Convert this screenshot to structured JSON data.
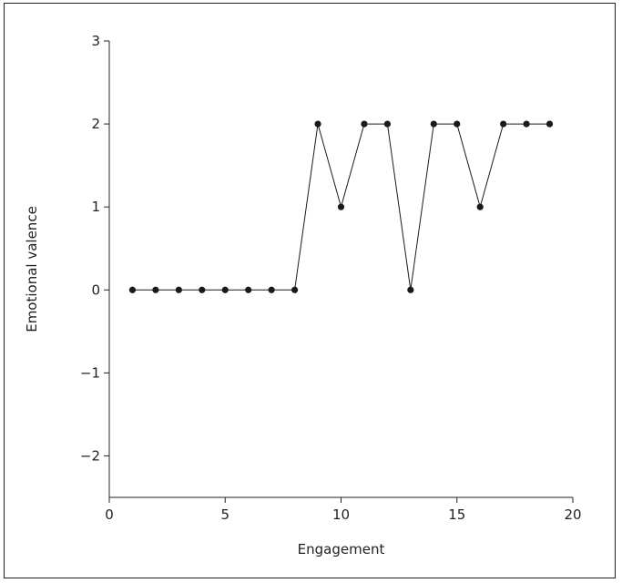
{
  "chart_data": {
    "type": "line",
    "title": "",
    "xlabel": "Engagement",
    "ylabel": "Emotional valence",
    "xlim": [
      0,
      20
    ],
    "ylim": [
      -2.5,
      3
    ],
    "xticks": [
      0,
      5,
      10,
      15,
      20
    ],
    "yticks": [
      3,
      2,
      1,
      0,
      -1,
      -2
    ],
    "ytick_labels": [
      "3",
      "2",
      "1",
      "0",
      "−1",
      "−2"
    ],
    "grid": false,
    "series": [
      {
        "x": [
          1,
          2,
          3,
          4,
          5,
          6,
          7,
          8,
          9,
          10,
          11,
          12,
          13,
          14,
          15,
          16,
          17,
          18,
          19
        ],
        "y": [
          0,
          0,
          0,
          0,
          0,
          0,
          0,
          0,
          2,
          1,
          2,
          2,
          0,
          2,
          2,
          1,
          2,
          2,
          2
        ],
        "color": "#1a1a1a",
        "marker": "circle"
      }
    ]
  }
}
